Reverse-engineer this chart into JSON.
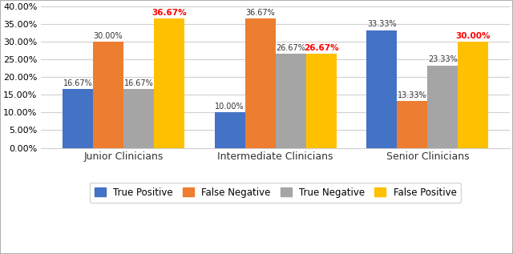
{
  "categories": [
    "Junior Clinicians",
    "Intermediate Clinicians",
    "Senior Clinicians"
  ],
  "series": {
    "True Positive": [
      16.67,
      10.0,
      33.33
    ],
    "False Negative": [
      30.0,
      36.67,
      13.33
    ],
    "True Negative": [
      16.67,
      26.67,
      23.33
    ],
    "False Positive": [
      36.67,
      26.67,
      30.0
    ]
  },
  "colors": {
    "True Positive": "#4472C4",
    "False Negative": "#ED7D31",
    "True Negative": "#A5A5A5",
    "False Positive": "#FFC000"
  },
  "red_labels": {
    "Junior Clinicians": [
      "False Positive"
    ],
    "Intermediate Clinicians": [
      "False Positive"
    ],
    "Senior Clinicians": [
      "False Positive"
    ]
  },
  "ylim": [
    0,
    40
  ],
  "yticks": [
    0,
    5,
    10,
    15,
    20,
    25,
    30,
    35,
    40
  ],
  "background_color": "#ffffff",
  "outer_border": "#c0c0c0"
}
